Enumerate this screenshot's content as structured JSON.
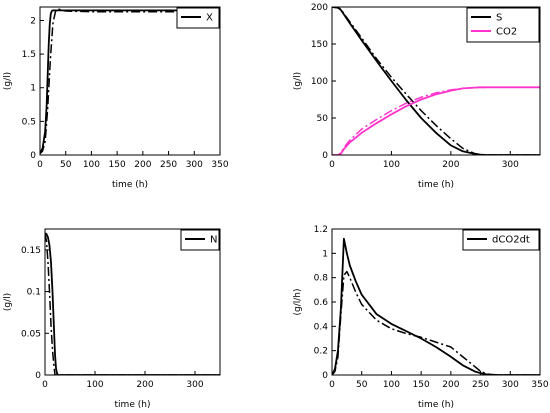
{
  "colors": {
    "model": "#000000",
    "experimental": "#000000",
    "co2": "#ff33cc",
    "background": "#ffffff"
  },
  "chart_data": [
    {
      "id": "X",
      "type": "line",
      "xlabel": "time (h)",
      "ylabel": "(g/l)",
      "xlim": [
        0,
        350
      ],
      "ylim": [
        0,
        2.2
      ],
      "xticks": [
        0,
        50,
        100,
        150,
        200,
        250,
        300,
        350
      ],
      "yticks": [
        0,
        0.5,
        1,
        1.5,
        2
      ],
      "ytick_labels": [
        "0",
        "0.5",
        "1",
        "1.5",
        "2"
      ],
      "legend": {
        "position": "top-right",
        "entries": [
          {
            "label": "X",
            "series": "X-model"
          }
        ]
      },
      "series": [
        {
          "name": "X",
          "key": "X-model",
          "style": "solid",
          "color": "#000000",
          "x": [
            0,
            5,
            10,
            13,
            15,
            17,
            19,
            21,
            23,
            25,
            28,
            30,
            50,
            100,
            200,
            350
          ],
          "y": [
            0.02,
            0.1,
            0.35,
            0.75,
            1.2,
            1.65,
            1.95,
            2.1,
            2.14,
            2.15,
            2.15,
            2.15,
            2.15,
            2.15,
            2.15,
            2.15
          ]
        },
        {
          "key": "X-exp",
          "style": "dashdot",
          "color": "#000000",
          "x": [
            0,
            5,
            10,
            15,
            20,
            25,
            30,
            35,
            40,
            50,
            100,
            200,
            350
          ],
          "y": [
            0.02,
            0.06,
            0.2,
            0.7,
            1.4,
            1.95,
            2.13,
            2.17,
            2.16,
            2.14,
            2.13,
            2.13,
            2.13
          ]
        }
      ]
    },
    {
      "id": "S",
      "type": "line",
      "xlabel": "time (h)",
      "ylabel": "(g/l)",
      "xlim": [
        0,
        350
      ],
      "ylim": [
        0,
        200
      ],
      "xticks": [
        0,
        100,
        200,
        300
      ],
      "yticks": [
        0,
        50,
        100,
        150,
        200
      ],
      "ytick_labels": [
        "0",
        "50",
        "100",
        "150",
        "200"
      ],
      "legend": {
        "position": "top-right",
        "entries": [
          {
            "label": "S",
            "series": "S-model"
          },
          {
            "label": "CO2",
            "series": "CO2-model"
          }
        ]
      },
      "series": [
        {
          "name": "S",
          "key": "S-model",
          "style": "solid",
          "color": "#000000",
          "x": [
            0,
            10,
            15,
            20,
            30,
            50,
            75,
            100,
            125,
            150,
            175,
            200,
            220,
            240,
            250,
            260,
            270,
            300,
            350
          ],
          "y": [
            200,
            199,
            196,
            190,
            178,
            155,
            127,
            100,
            74,
            50,
            30,
            13,
            5,
            1.5,
            0.5,
            0,
            0,
            0,
            0
          ]
        },
        {
          "key": "S-exp",
          "style": "dashdot",
          "color": "#000000",
          "x": [
            0,
            10,
            15,
            20,
            30,
            50,
            75,
            100,
            125,
            150,
            175,
            200,
            220,
            240,
            250,
            260,
            350
          ],
          "y": [
            200,
            199,
            197,
            191,
            180,
            158,
            130,
            105,
            82,
            60,
            40,
            22,
            9,
            2,
            0.5,
            0,
            0
          ]
        },
        {
          "name": "CO2",
          "key": "CO2-model",
          "style": "solid",
          "color": "#ff33cc",
          "x": [
            0,
            10,
            15,
            20,
            30,
            50,
            75,
            100,
            125,
            150,
            175,
            200,
            220,
            240,
            250,
            260,
            280,
            300,
            350
          ],
          "y": [
            0,
            0,
            2,
            8,
            17,
            30,
            43,
            55,
            66,
            75,
            82,
            87,
            90,
            91,
            91.5,
            91.5,
            91.5,
            91.5,
            91.5
          ]
        },
        {
          "key": "CO2-exp",
          "style": "dashdot",
          "color": "#ff33cc",
          "x": [
            0,
            10,
            15,
            20,
            30,
            50,
            75,
            100,
            125,
            150,
            175,
            200,
            220,
            240,
            260,
            300,
            350
          ],
          "y": [
            0,
            0,
            3,
            10,
            20,
            35,
            48,
            60,
            70,
            78,
            84,
            88,
            90,
            91,
            91.5,
            91.5,
            91.5
          ]
        }
      ]
    },
    {
      "id": "N",
      "type": "line",
      "xlabel": "time (h)",
      "ylabel": "(g/l)",
      "xlim": [
        0,
        350
      ],
      "ylim": [
        0,
        0.175
      ],
      "xticks": [
        0,
        100,
        200,
        300
      ],
      "yticks": [
        0,
        0.05,
        0.1,
        0.15
      ],
      "ytick_labels": [
        "0",
        "0.05",
        "0.1",
        "0.15"
      ],
      "legend": {
        "position": "top-right",
        "entries": [
          {
            "label": "N",
            "series": "N-model"
          }
        ]
      },
      "series": [
        {
          "name": "N",
          "key": "N-model",
          "style": "solid",
          "color": "#000000",
          "x": [
            0,
            3,
            6,
            9,
            12,
            15,
            18,
            20,
            22,
            24,
            26,
            30,
            350
          ],
          "y": [
            0.17,
            0.169,
            0.165,
            0.155,
            0.135,
            0.1,
            0.055,
            0.025,
            0.008,
            0.002,
            0,
            0,
            0
          ]
        },
        {
          "key": "N-exp",
          "style": "dashdot",
          "color": "#000000",
          "x": [
            0,
            3,
            6,
            9,
            12,
            15,
            18,
            20,
            25,
            350
          ],
          "y": [
            0.17,
            0.16,
            0.135,
            0.1,
            0.06,
            0.03,
            0.01,
            0,
            0,
            0
          ]
        }
      ]
    },
    {
      "id": "dCO2dt",
      "type": "line",
      "xlabel": "time (h)",
      "ylabel": "(g/l/h)",
      "xlim": [
        0,
        350
      ],
      "ylim": [
        0,
        1.2
      ],
      "xticks": [
        0,
        50,
        100,
        150,
        200,
        250,
        300,
        350
      ],
      "yticks": [
        0,
        0.2,
        0.4,
        0.6,
        0.8,
        1,
        1.2
      ],
      "ytick_labels": [
        "0",
        "0.2",
        "0.4",
        "0.6",
        "0.8",
        "1",
        "1.2"
      ],
      "legend": {
        "position": "top-right",
        "entries": [
          {
            "label": "dCO2dt",
            "series": "dCO2-model"
          }
        ]
      },
      "series": [
        {
          "name": "dCO2dt",
          "key": "dCO2-model",
          "style": "solid",
          "color": "#000000",
          "x": [
            0,
            5,
            10,
            15,
            20,
            25,
            30,
            40,
            50,
            75,
            100,
            125,
            150,
            175,
            200,
            220,
            240,
            250,
            260,
            280,
            300,
            350
          ],
          "y": [
            0,
            0.05,
            0.2,
            0.55,
            1.12,
            1.0,
            0.9,
            0.77,
            0.66,
            0.5,
            0.42,
            0.36,
            0.3,
            0.23,
            0.15,
            0.08,
            0.03,
            0.015,
            0.005,
            0,
            0,
            0
          ]
        },
        {
          "key": "dCO2-exp",
          "style": "dashdot",
          "color": "#000000",
          "x": [
            0,
            5,
            10,
            15,
            20,
            25,
            30,
            40,
            50,
            75,
            100,
            125,
            150,
            175,
            200,
            220,
            240,
            250,
            260,
            270,
            350
          ],
          "y": [
            0,
            0.03,
            0.15,
            0.5,
            0.82,
            0.85,
            0.8,
            0.68,
            0.58,
            0.45,
            0.38,
            0.34,
            0.31,
            0.27,
            0.23,
            0.15,
            0.07,
            0.03,
            0.01,
            0,
            0
          ]
        }
      ]
    }
  ]
}
